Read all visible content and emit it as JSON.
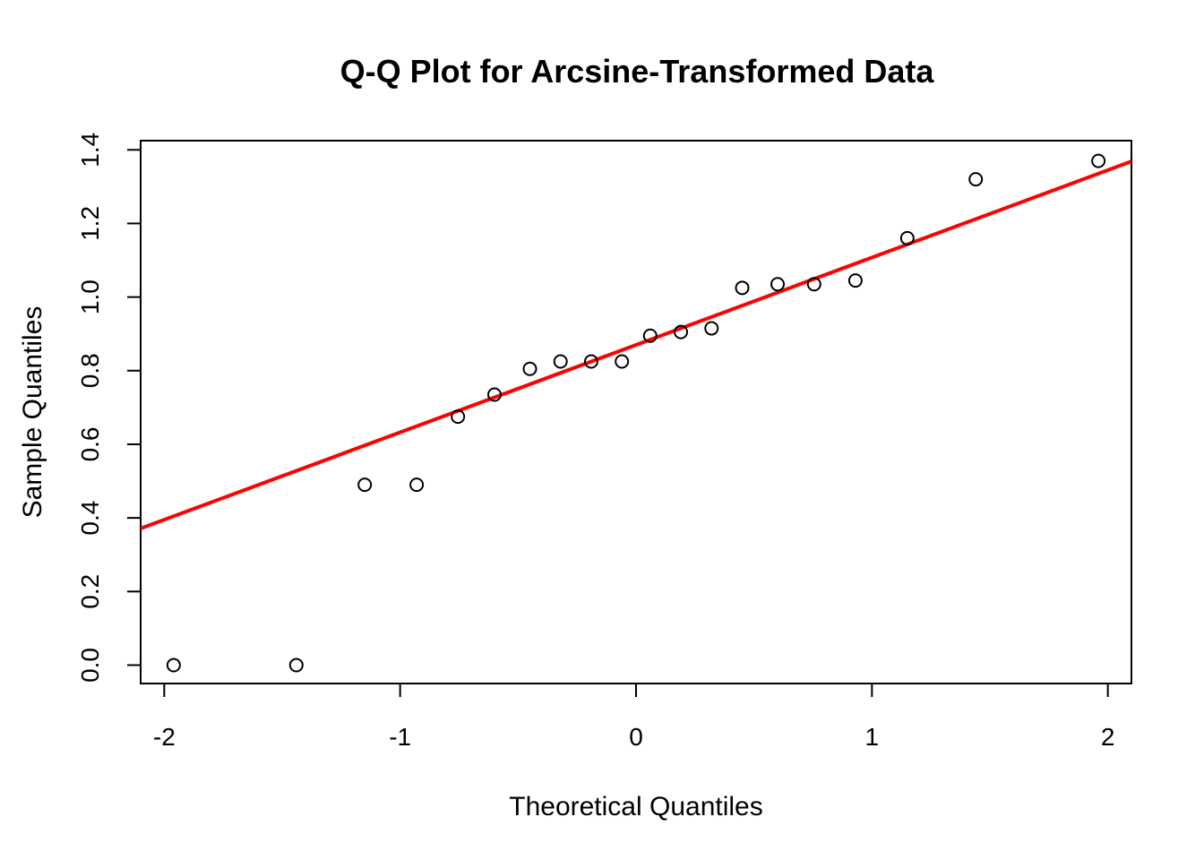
{
  "chart_data": {
    "type": "scatter",
    "title": "Q-Q Plot for Arcsine-Transformed Data",
    "xlabel": "Theoretical Quantiles",
    "ylabel": "Sample Quantiles",
    "xlim": [
      -2.1,
      2.1
    ],
    "ylim": [
      -0.05,
      1.425
    ],
    "x_ticks": [
      -2,
      -1,
      0,
      1,
      2
    ],
    "x_tick_labels": [
      "-2",
      "-1",
      "0",
      "1",
      "2"
    ],
    "y_ticks": [
      0.0,
      0.2,
      0.4,
      0.6,
      0.8,
      1.0,
      1.2,
      1.4
    ],
    "y_tick_labels": [
      "0.0",
      "0.2",
      "0.4",
      "0.6",
      "0.8",
      "1.0",
      "1.2",
      "1.4"
    ],
    "grid": false,
    "series": [
      {
        "marker": "open-circle",
        "color": "#000000",
        "points": [
          {
            "x": -1.96,
            "y": 0.0
          },
          {
            "x": -1.44,
            "y": 0.0
          },
          {
            "x": -1.15,
            "y": 0.49
          },
          {
            "x": -0.93,
            "y": 0.49
          },
          {
            "x": -0.755,
            "y": 0.675
          },
          {
            "x": -0.6,
            "y": 0.735
          },
          {
            "x": -0.45,
            "y": 0.805
          },
          {
            "x": -0.32,
            "y": 0.825
          },
          {
            "x": -0.19,
            "y": 0.825
          },
          {
            "x": -0.06,
            "y": 0.825
          },
          {
            "x": 0.06,
            "y": 0.895
          },
          {
            "x": 0.19,
            "y": 0.905
          },
          {
            "x": 0.32,
            "y": 0.915
          },
          {
            "x": 0.45,
            "y": 1.025
          },
          {
            "x": 0.6,
            "y": 1.035
          },
          {
            "x": 0.755,
            "y": 1.035
          },
          {
            "x": 0.93,
            "y": 1.045
          },
          {
            "x": 1.15,
            "y": 1.16
          },
          {
            "x": 1.44,
            "y": 1.32
          },
          {
            "x": 1.96,
            "y": 1.37
          }
        ]
      }
    ],
    "reference_line": {
      "color": "#ff0000",
      "intercept": 0.87,
      "slope": 0.2375
    }
  }
}
